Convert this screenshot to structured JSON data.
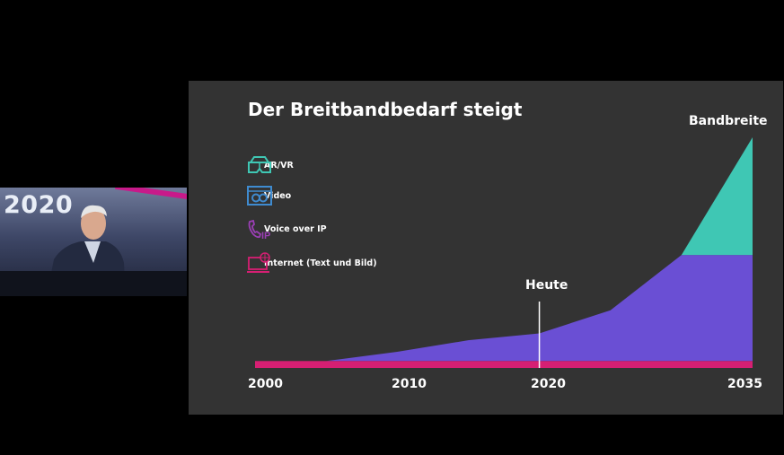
{
  "inset": {
    "overlay_text": "2020",
    "accent": "#c81a8a"
  },
  "slide": {
    "background": "#333333",
    "title": "Der Breitbandbedarf steigt",
    "legend": [
      {
        "label": "AR/VR",
        "icon": "vr-glasses-icon",
        "color": "#3fc7b4"
      },
      {
        "label": "Video",
        "icon": "video-icon",
        "color": "#3f8bd0"
      },
      {
        "label": "Voice over IP",
        "icon": "voip-phone-icon",
        "color": "#9b3fb5"
      },
      {
        "label": "Internet (Text und Bild)",
        "icon": "internet-globe-icon",
        "color": "#d61f73"
      }
    ]
  },
  "chart_data": {
    "type": "area",
    "title": "Der Breitbandbedarf steigt",
    "x_ticks": [
      "2000",
      "2010",
      "2020",
      "2035"
    ],
    "xlim": [
      2000,
      2035
    ],
    "ylim": [
      0,
      100
    ],
    "grid": false,
    "y_axis_visible": false,
    "series": [
      {
        "name": "Internet (Text und Bild)",
        "color": "#d61f73",
        "x": [
          2000,
          2035
        ],
        "values": [
          3,
          3
        ]
      },
      {
        "name": "Video",
        "color": "#6a4fd4",
        "x": [
          2000,
          2005,
          2010,
          2015,
          2020,
          2025,
          2030,
          2035
        ],
        "values": [
          0,
          0,
          4,
          9,
          12,
          22,
          46,
          46
        ]
      },
      {
        "name": "AR/VR",
        "color": "#3fc7b4",
        "x": [
          2030,
          2035
        ],
        "values": [
          0,
          51
        ]
      }
    ],
    "annotations": [
      {
        "text": "Heute",
        "x": 2020,
        "type": "vertical-line"
      },
      {
        "text": "Bandbreite",
        "x": 2035
      }
    ]
  }
}
